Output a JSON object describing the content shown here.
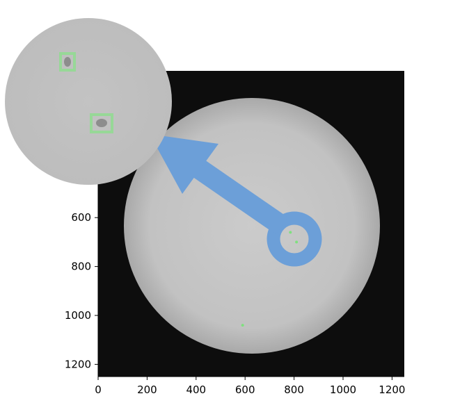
{
  "image": {
    "description_kind": "solar-disk-with-sunspots",
    "frame_color": "#0d0d0d",
    "disk_color": "#c5c5c5",
    "sunspot_marker_color": "#7fe07f",
    "arrow_color": "#6c9fd8",
    "arrow_icon": "arrow-pointing-to-inset-icon"
  },
  "chart_data": {
    "type": "image",
    "x_ticks": [
      "0",
      "200",
      "400",
      "600",
      "800",
      "1000",
      "1200"
    ],
    "y_ticks": [
      "600",
      "800",
      "1000",
      "1200"
    ],
    "x_tick_values": [
      0,
      200,
      400,
      600,
      800,
      1000,
      1200
    ],
    "y_tick_values": [
      600,
      800,
      1000,
      1200
    ],
    "xlim": [
      0,
      1250
    ],
    "ylim": [
      1250,
      0
    ],
    "sunspots": [
      {
        "x": 785,
        "y": 660
      },
      {
        "x": 810,
        "y": 700
      },
      {
        "x": 590,
        "y": 1040
      }
    ]
  }
}
